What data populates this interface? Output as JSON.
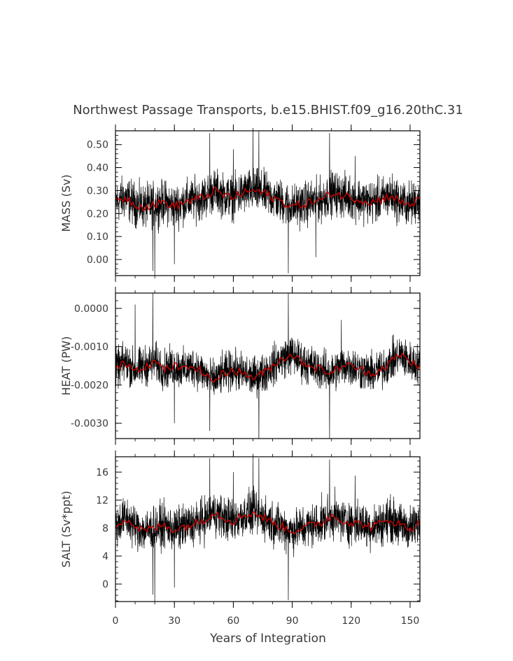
{
  "chart_data": {
    "type": "line",
    "title": "Northwest Passage Transports, b.e15.BHIST.f09_g16.20thC.31",
    "xlabel": "Years of Integration",
    "xlim": [
      0,
      155
    ],
    "x_ticks": [
      "0",
      "30",
      "60",
      "90",
      "120",
      "150"
    ],
    "x_tick_values": [
      0,
      30,
      60,
      90,
      120,
      150
    ],
    "series_colors": {
      "monthly": "#000000",
      "annual": "#cc0000"
    },
    "panels": [
      {
        "ylabel": "MASS (Sv)",
        "ylim": [
          -0.07,
          0.56
        ],
        "y_ticks": [
          "0.50",
          "0.40",
          "0.30",
          "0.20",
          "0.10",
          "0.00"
        ],
        "y_tick_values": [
          0.5,
          0.4,
          0.3,
          0.2,
          0.1,
          0.0
        ],
        "annual_mean": [
          {
            "x": 0,
            "y": 0.25
          },
          {
            "x": 5,
            "y": 0.27
          },
          {
            "x": 10,
            "y": 0.24
          },
          {
            "x": 15,
            "y": 0.23
          },
          {
            "x": 20,
            "y": 0.24
          },
          {
            "x": 25,
            "y": 0.25
          },
          {
            "x": 30,
            "y": 0.23
          },
          {
            "x": 35,
            "y": 0.25
          },
          {
            "x": 40,
            "y": 0.26
          },
          {
            "x": 45,
            "y": 0.27
          },
          {
            "x": 50,
            "y": 0.3
          },
          {
            "x": 55,
            "y": 0.28
          },
          {
            "x": 60,
            "y": 0.27
          },
          {
            "x": 65,
            "y": 0.29
          },
          {
            "x": 70,
            "y": 0.3
          },
          {
            "x": 75,
            "y": 0.29
          },
          {
            "x": 80,
            "y": 0.27
          },
          {
            "x": 85,
            "y": 0.25
          },
          {
            "x": 90,
            "y": 0.23
          },
          {
            "x": 95,
            "y": 0.24
          },
          {
            "x": 100,
            "y": 0.25
          },
          {
            "x": 105,
            "y": 0.26
          },
          {
            "x": 110,
            "y": 0.29
          },
          {
            "x": 115,
            "y": 0.28
          },
          {
            "x": 120,
            "y": 0.27
          },
          {
            "x": 125,
            "y": 0.26
          },
          {
            "x": 130,
            "y": 0.25
          },
          {
            "x": 135,
            "y": 0.26
          },
          {
            "x": 140,
            "y": 0.28
          },
          {
            "x": 145,
            "y": 0.25
          },
          {
            "x": 150,
            "y": 0.24
          },
          {
            "x": 155,
            "y": 0.26
          }
        ],
        "monthly_envelope": {
          "center": 0.26,
          "spread": 0.11
        },
        "monthly_extremes": [
          {
            "x": 19,
            "y": -0.05
          },
          {
            "x": 20,
            "y": -0.07
          },
          {
            "x": 30,
            "y": -0.02
          },
          {
            "x": 48,
            "y": 0.55
          },
          {
            "x": 70,
            "y": 0.58
          },
          {
            "x": 73,
            "y": 0.56
          },
          {
            "x": 88,
            "y": -0.06
          },
          {
            "x": 109,
            "y": 0.55
          },
          {
            "x": 102,
            "y": 0.01
          },
          {
            "x": 60,
            "y": 0.48
          },
          {
            "x": 122,
            "y": 0.45
          }
        ]
      },
      {
        "ylabel": "HEAT (PW)",
        "ylim": [
          -0.0034,
          0.0004
        ],
        "y_ticks": [
          "0.0000",
          "-0.0010",
          "-0.0020",
          "-0.0030"
        ],
        "y_tick_values": [
          0.0,
          -0.001,
          -0.002,
          -0.003
        ],
        "annual_mean": [
          {
            "x": 0,
            "y": -0.0016
          },
          {
            "x": 5,
            "y": -0.0014
          },
          {
            "x": 10,
            "y": -0.0016
          },
          {
            "x": 15,
            "y": -0.0015
          },
          {
            "x": 20,
            "y": -0.0014
          },
          {
            "x": 25,
            "y": -0.0016
          },
          {
            "x": 30,
            "y": -0.0015
          },
          {
            "x": 35,
            "y": -0.0016
          },
          {
            "x": 40,
            "y": -0.0015
          },
          {
            "x": 45,
            "y": -0.0017
          },
          {
            "x": 50,
            "y": -0.0019
          },
          {
            "x": 55,
            "y": -0.0017
          },
          {
            "x": 60,
            "y": -0.0016
          },
          {
            "x": 65,
            "y": -0.0017
          },
          {
            "x": 70,
            "y": -0.0018
          },
          {
            "x": 75,
            "y": -0.0017
          },
          {
            "x": 80,
            "y": -0.0015
          },
          {
            "x": 85,
            "y": -0.0013
          },
          {
            "x": 90,
            "y": -0.0012
          },
          {
            "x": 95,
            "y": -0.0014
          },
          {
            "x": 100,
            "y": -0.0015
          },
          {
            "x": 105,
            "y": -0.0016
          },
          {
            "x": 110,
            "y": -0.0017
          },
          {
            "x": 115,
            "y": -0.0015
          },
          {
            "x": 120,
            "y": -0.0015
          },
          {
            "x": 125,
            "y": -0.0016
          },
          {
            "x": 130,
            "y": -0.0017
          },
          {
            "x": 135,
            "y": -0.0016
          },
          {
            "x": 140,
            "y": -0.0014
          },
          {
            "x": 145,
            "y": -0.0012
          },
          {
            "x": 150,
            "y": -0.0014
          },
          {
            "x": 155,
            "y": -0.0015
          }
        ],
        "monthly_envelope": {
          "center": -0.00155,
          "spread": 0.0006
        },
        "monthly_extremes": [
          {
            "x": 19,
            "y": 0.0004
          },
          {
            "x": 10,
            "y": 0.0001
          },
          {
            "x": 88,
            "y": 0.0004
          },
          {
            "x": 48,
            "y": -0.0032
          },
          {
            "x": 73,
            "y": -0.0035
          },
          {
            "x": 109,
            "y": -0.0034
          },
          {
            "x": 30,
            "y": -0.003
          },
          {
            "x": 115,
            "y": -0.0003
          }
        ]
      },
      {
        "ylabel": "SALT (Sv*ppt)",
        "ylim": [
          -2.5,
          18.2
        ],
        "y_ticks": [
          "16",
          "12",
          "8",
          "4",
          "0"
        ],
        "y_tick_values": [
          16,
          12,
          8,
          4,
          0
        ],
        "annual_mean": [
          {
            "x": 0,
            "y": 8.4
          },
          {
            "x": 5,
            "y": 9.5
          },
          {
            "x": 10,
            "y": 8.2
          },
          {
            "x": 15,
            "y": 7.6
          },
          {
            "x": 20,
            "y": 8.0
          },
          {
            "x": 25,
            "y": 8.4
          },
          {
            "x": 30,
            "y": 7.8
          },
          {
            "x": 35,
            "y": 8.2
          },
          {
            "x": 40,
            "y": 8.6
          },
          {
            "x": 45,
            "y": 9.2
          },
          {
            "x": 50,
            "y": 10.3
          },
          {
            "x": 55,
            "y": 9.5
          },
          {
            "x": 60,
            "y": 9.0
          },
          {
            "x": 65,
            "y": 9.8
          },
          {
            "x": 70,
            "y": 10.2
          },
          {
            "x": 75,
            "y": 9.6
          },
          {
            "x": 80,
            "y": 8.8
          },
          {
            "x": 85,
            "y": 8.2
          },
          {
            "x": 90,
            "y": 7.6
          },
          {
            "x": 95,
            "y": 8.0
          },
          {
            "x": 100,
            "y": 8.4
          },
          {
            "x": 105,
            "y": 8.8
          },
          {
            "x": 110,
            "y": 9.8
          },
          {
            "x": 115,
            "y": 9.2
          },
          {
            "x": 120,
            "y": 8.8
          },
          {
            "x": 125,
            "y": 8.6
          },
          {
            "x": 130,
            "y": 8.2
          },
          {
            "x": 135,
            "y": 8.6
          },
          {
            "x": 140,
            "y": 9.3
          },
          {
            "x": 145,
            "y": 8.4
          },
          {
            "x": 150,
            "y": 8.0
          },
          {
            "x": 155,
            "y": 8.6
          }
        ],
        "monthly_envelope": {
          "center": 8.6,
          "spread": 3.6
        },
        "monthly_extremes": [
          {
            "x": 19,
            "y": -1.5
          },
          {
            "x": 20,
            "y": -2.5
          },
          {
            "x": 30,
            "y": -0.5
          },
          {
            "x": 48,
            "y": 18.0
          },
          {
            "x": 70,
            "y": 18.5
          },
          {
            "x": 73,
            "y": 18.0
          },
          {
            "x": 88,
            "y": -2.3
          },
          {
            "x": 109,
            "y": 17.8
          },
          {
            "x": 60,
            "y": 16.0
          },
          {
            "x": 122,
            "y": 15.5
          }
        ]
      }
    ]
  }
}
